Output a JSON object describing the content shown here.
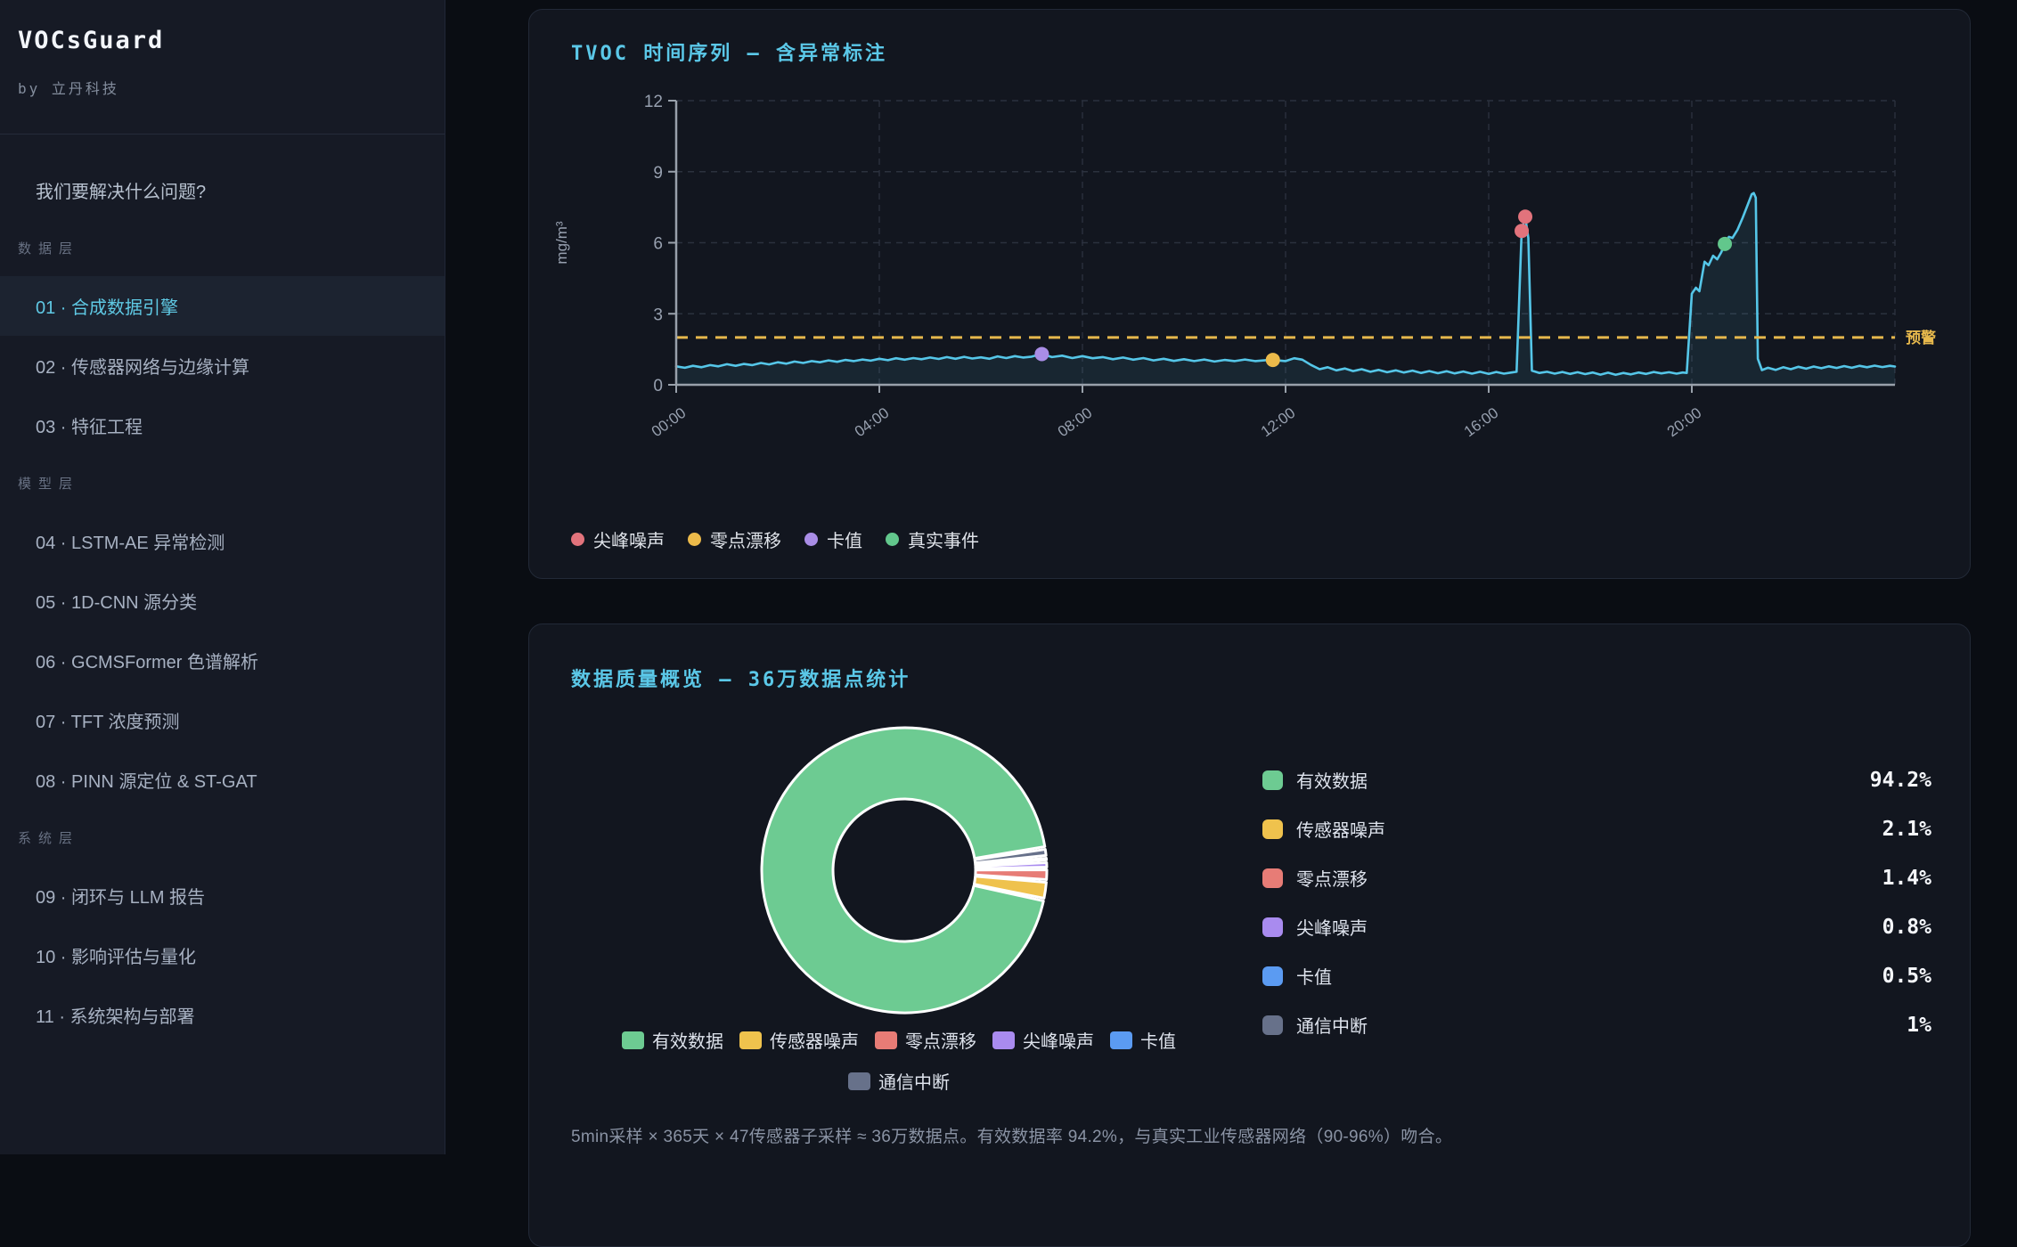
{
  "sidebar": {
    "brand": "VOCsGuard",
    "byline": "by 立丹科技",
    "intro_item": "我们要解决什么问题?",
    "sections": [
      {
        "label": "数据层",
        "items": [
          {
            "label": "01 · 合成数据引擎",
            "active": true
          },
          {
            "label": "02 · 传感器网络与边缘计算",
            "active": false
          },
          {
            "label": "03 · 特征工程",
            "active": false
          }
        ]
      },
      {
        "label": "模型层",
        "items": [
          {
            "label": "04 · LSTM-AE 异常检测",
            "active": false
          },
          {
            "label": "05 · 1D-CNN 源分类",
            "active": false
          },
          {
            "label": "06 · GCMSFormer 色谱解析",
            "active": false
          },
          {
            "label": "07 · TFT 浓度预测",
            "active": false
          },
          {
            "label": "08 · PINN 源定位 & ST-GAT",
            "active": false
          }
        ]
      },
      {
        "label": "系统层",
        "items": [
          {
            "label": "09 · 闭环与 LLM 报告",
            "active": false
          },
          {
            "label": "10 · 影响评估与量化",
            "active": false
          },
          {
            "label": "11 · 系统架构与部署",
            "active": false
          }
        ]
      }
    ]
  },
  "timeseries_card": {
    "title": "TVOC 时间序列 — 含异常标注",
    "colors": {
      "line": "#55c6e8",
      "fill": "#55c6e8",
      "threshold": "#e6b84c",
      "grid": "#2b313e",
      "spine": "#99a1ab",
      "tick_text": "#97a0af"
    }
  },
  "quality_card": {
    "title": "数据质量概览 — 36万数据点统计",
    "caption": "5min采样 × 365天 × 47传感器子采样 ≈ 36万数据点。有效数据率 94.2%，与真实工业传感器网络（90-96%）吻合。",
    "stats": [
      {
        "label": "有效数据",
        "value": "94.2%",
        "color": "#6dcb92"
      },
      {
        "label": "传感器噪声",
        "value": "2.1%",
        "color": "#efc24d"
      },
      {
        "label": "零点漂移",
        "value": "1.4%",
        "color": "#e77c76"
      },
      {
        "label": "尖峰噪声",
        "value": "0.8%",
        "color": "#a98bef"
      },
      {
        "label": "卡值",
        "value": "0.5%",
        "color": "#5b9bf2"
      },
      {
        "label": "通信中断",
        "value": "1%",
        "color": "#67718a"
      }
    ],
    "legend_rows": [
      [
        0,
        1,
        2,
        3,
        4
      ],
      [
        5
      ]
    ]
  },
  "chart_data": [
    {
      "id": "tvoc_timeseries",
      "type": "line",
      "title": "TVOC 时间序列 — 含异常标注",
      "ylabel": "mg/m³",
      "ylim": [
        0,
        12
      ],
      "yticks": [
        0,
        3,
        6,
        9,
        12
      ],
      "xlim_hours": [
        0,
        24
      ],
      "xticks": [
        {
          "hour": 0,
          "label": "00:00"
        },
        {
          "hour": 4,
          "label": "04:00"
        },
        {
          "hour": 8,
          "label": "08:00"
        },
        {
          "hour": 12,
          "label": "12:00"
        },
        {
          "hour": 16,
          "label": "16:00"
        },
        {
          "hour": 20,
          "label": "20:00"
        }
      ],
      "grid": true,
      "threshold": {
        "value": 2.0,
        "label": "预警"
      },
      "points": [
        [
          0,
          0.78
        ],
        [
          0.17,
          0.72
        ],
        [
          0.33,
          0.8
        ],
        [
          0.5,
          0.74
        ],
        [
          0.67,
          0.83
        ],
        [
          0.83,
          0.78
        ],
        [
          1,
          0.87
        ],
        [
          1.17,
          0.8
        ],
        [
          1.33,
          0.88
        ],
        [
          1.5,
          0.83
        ],
        [
          1.67,
          0.92
        ],
        [
          1.83,
          0.86
        ],
        [
          2,
          0.95
        ],
        [
          2.17,
          0.89
        ],
        [
          2.33,
          0.98
        ],
        [
          2.5,
          0.92
        ],
        [
          2.67,
          1.0
        ],
        [
          2.83,
          0.95
        ],
        [
          3,
          1.03
        ],
        [
          3.17,
          0.97
        ],
        [
          3.33,
          1.05
        ],
        [
          3.5,
          1.0
        ],
        [
          3.67,
          1.07
        ],
        [
          3.83,
          1.02
        ],
        [
          4,
          1.1
        ],
        [
          4.17,
          1.04
        ],
        [
          4.33,
          1.12
        ],
        [
          4.5,
          1.06
        ],
        [
          4.67,
          1.13
        ],
        [
          4.83,
          1.08
        ],
        [
          5,
          1.15
        ],
        [
          5.17,
          1.09
        ],
        [
          5.33,
          1.17
        ],
        [
          5.5,
          1.1
        ],
        [
          5.67,
          1.18
        ],
        [
          5.83,
          1.11
        ],
        [
          6,
          1.16
        ],
        [
          6.17,
          1.1
        ],
        [
          6.33,
          1.2
        ],
        [
          6.5,
          1.13
        ],
        [
          6.67,
          1.21
        ],
        [
          6.83,
          1.15
        ],
        [
          7,
          1.19
        ],
        [
          7.2,
          1.3
        ],
        [
          7.4,
          1.17
        ],
        [
          7.6,
          1.23
        ],
        [
          7.8,
          1.13
        ],
        [
          8,
          1.21
        ],
        [
          8.2,
          1.12
        ],
        [
          8.4,
          1.17
        ],
        [
          8.6,
          1.08
        ],
        [
          8.8,
          1.15
        ],
        [
          9,
          1.06
        ],
        [
          9.2,
          1.13
        ],
        [
          9.4,
          1.03
        ],
        [
          9.6,
          1.1
        ],
        [
          9.8,
          1.01
        ],
        [
          10,
          1.08
        ],
        [
          10.2,
          1.0
        ],
        [
          10.4,
          1.07
        ],
        [
          10.6,
          0.98
        ],
        [
          10.8,
          1.05
        ],
        [
          11,
          1.0
        ],
        [
          11.2,
          1.07
        ],
        [
          11.4,
          1.0
        ],
        [
          11.6,
          1.04
        ],
        [
          11.75,
          1.05
        ],
        [
          12,
          1.0
        ],
        [
          12.17,
          1.12
        ],
        [
          12.33,
          1.06
        ],
        [
          12.5,
          0.84
        ],
        [
          12.67,
          0.66
        ],
        [
          12.83,
          0.74
        ],
        [
          13,
          0.61
        ],
        [
          13.17,
          0.69
        ],
        [
          13.33,
          0.58
        ],
        [
          13.5,
          0.66
        ],
        [
          13.67,
          0.55
        ],
        [
          13.83,
          0.63
        ],
        [
          14,
          0.53
        ],
        [
          14.17,
          0.61
        ],
        [
          14.33,
          0.52
        ],
        [
          14.5,
          0.6
        ],
        [
          14.67,
          0.5
        ],
        [
          14.83,
          0.58
        ],
        [
          15,
          0.49
        ],
        [
          15.17,
          0.57
        ],
        [
          15.33,
          0.48
        ],
        [
          15.5,
          0.56
        ],
        [
          15.67,
          0.47
        ],
        [
          15.83,
          0.55
        ],
        [
          16,
          0.46
        ],
        [
          16.15,
          0.54
        ],
        [
          16.3,
          0.47
        ],
        [
          16.45,
          0.52
        ],
        [
          16.55,
          0.55
        ],
        [
          16.65,
          6.5
        ],
        [
          16.72,
          7.1
        ],
        [
          16.78,
          6.2
        ],
        [
          16.85,
          0.6
        ],
        [
          17,
          0.5
        ],
        [
          17.15,
          0.55
        ],
        [
          17.3,
          0.47
        ],
        [
          17.45,
          0.54
        ],
        [
          17.6,
          0.46
        ],
        [
          17.75,
          0.53
        ],
        [
          17.9,
          0.45
        ],
        [
          18.05,
          0.52
        ],
        [
          18.2,
          0.43
        ],
        [
          18.35,
          0.51
        ],
        [
          18.5,
          0.42
        ],
        [
          18.65,
          0.5
        ],
        [
          18.8,
          0.44
        ],
        [
          18.95,
          0.52
        ],
        [
          19.1,
          0.46
        ],
        [
          19.25,
          0.54
        ],
        [
          19.4,
          0.48
        ],
        [
          19.55,
          0.53
        ],
        [
          19.7,
          0.47
        ],
        [
          19.82,
          0.52
        ],
        [
          19.9,
          0.5
        ],
        [
          20.0,
          3.85
        ],
        [
          20.08,
          4.1
        ],
        [
          20.15,
          3.95
        ],
        [
          20.25,
          5.2
        ],
        [
          20.33,
          5.05
        ],
        [
          20.42,
          5.45
        ],
        [
          20.5,
          5.3
        ],
        [
          20.58,
          5.6
        ],
        [
          20.65,
          5.95
        ],
        [
          20.73,
          6.25
        ],
        [
          20.8,
          6.2
        ],
        [
          20.9,
          6.55
        ],
        [
          21.0,
          7.05
        ],
        [
          21.1,
          7.6
        ],
        [
          21.18,
          8.05
        ],
        [
          21.22,
          8.1
        ],
        [
          21.26,
          7.9
        ],
        [
          21.3,
          1.1
        ],
        [
          21.38,
          0.62
        ],
        [
          21.5,
          0.72
        ],
        [
          21.65,
          0.63
        ],
        [
          21.8,
          0.74
        ],
        [
          21.95,
          0.66
        ],
        [
          22.1,
          0.76
        ],
        [
          22.25,
          0.68
        ],
        [
          22.4,
          0.77
        ],
        [
          22.55,
          0.7
        ],
        [
          22.7,
          0.78
        ],
        [
          22.85,
          0.71
        ],
        [
          23.0,
          0.79
        ],
        [
          23.15,
          0.72
        ],
        [
          23.3,
          0.8
        ],
        [
          23.45,
          0.74
        ],
        [
          23.6,
          0.81
        ],
        [
          23.75,
          0.75
        ],
        [
          23.9,
          0.8
        ],
        [
          24,
          0.77
        ]
      ],
      "markers": [
        {
          "type": "尖峰噪声",
          "color": "#e2737c",
          "points": [
            [
              16.65,
              6.5
            ],
            [
              16.72,
              7.1
            ]
          ]
        },
        {
          "type": "零点漂移",
          "color": "#ecba4a",
          "points": [
            [
              11.75,
              1.05
            ]
          ]
        },
        {
          "type": "卡值",
          "color": "#a98de6",
          "points": [
            [
              7.2,
              1.3
            ]
          ]
        },
        {
          "type": "真实事件",
          "color": "#62c78c",
          "points": [
            [
              20.65,
              5.95
            ]
          ]
        }
      ],
      "legend": [
        "尖峰噪声",
        "零点漂移",
        "卡值",
        "真实事件"
      ],
      "legend_position": "bottom-left"
    },
    {
      "id": "data_quality_donut",
      "type": "pie",
      "donut": true,
      "title": "数据质量概览 — 36万数据点统计",
      "categories": [
        "有效数据",
        "传感器噪声",
        "零点漂移",
        "尖峰噪声",
        "卡值",
        "通信中断"
      ],
      "values": [
        94.2,
        2.1,
        1.4,
        0.8,
        0.5,
        1.0
      ],
      "colors": [
        "#6dcb92",
        "#efc24d",
        "#e77c76",
        "#a98bef",
        "#5b9bf2",
        "#67718a"
      ],
      "start_angle_deg": 9,
      "counterclockwise": true,
      "legend_position": "bottom"
    }
  ]
}
